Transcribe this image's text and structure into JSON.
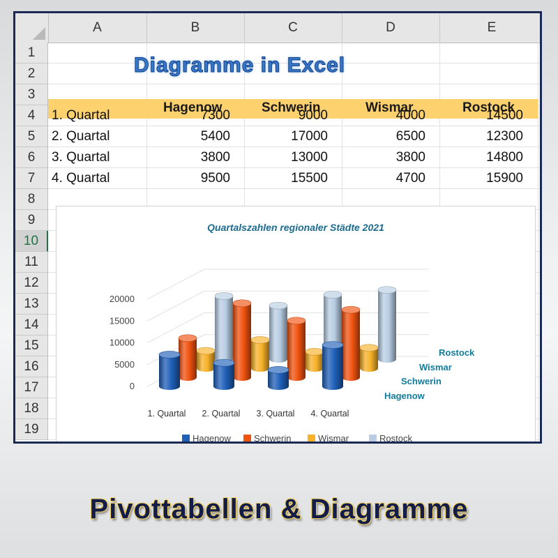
{
  "sheet": {
    "columns": [
      "A",
      "B",
      "C",
      "D",
      "E"
    ],
    "rows": [
      "1",
      "2",
      "3",
      "4",
      "5",
      "6",
      "7",
      "8",
      "9",
      "10",
      "11",
      "12",
      "13",
      "14",
      "15",
      "16",
      "17",
      "18",
      "19"
    ],
    "selected_row": "10",
    "title": "Diagramme in Excel",
    "header": [
      "Hagenow",
      "Schwerin",
      "Wismar",
      "Rostock"
    ],
    "data_rows": [
      {
        "label": "1. Quartal",
        "values": [
          "7300",
          "9000",
          "4000",
          "14500"
        ]
      },
      {
        "label": "2. Quartal",
        "values": [
          "5400",
          "17000",
          "6500",
          "12300"
        ]
      },
      {
        "label": "3. Quartal",
        "values": [
          "3800",
          "13000",
          "3800",
          "14800"
        ]
      },
      {
        "label": "4. Quartal",
        "values": [
          "9500",
          "15500",
          "4700",
          "15900"
        ]
      }
    ],
    "header_fill": "#fdd16e"
  },
  "chart_data": {
    "type": "bar",
    "title": "Quartalszahlen regionaler Städte 2021",
    "categories": [
      "1. Quartal",
      "2. Quartal",
      "3. Quartal",
      "4. Quartal"
    ],
    "series": [
      {
        "name": "Hagenow",
        "values": [
          7300,
          5400,
          3800,
          9500
        ],
        "color": "#1f5fb8"
      },
      {
        "name": "Schwerin",
        "values": [
          9000,
          17000,
          13000,
          15500
        ],
        "color": "#f0520f"
      },
      {
        "name": "Wismar",
        "values": [
          4000,
          6500,
          3800,
          4700
        ],
        "color": "#f7b229"
      },
      {
        "name": "Rostock",
        "values": [
          14500,
          12300,
          14800,
          15900
        ],
        "color": "#b8cde3"
      }
    ],
    "y_ticks": [
      "0",
      "5000",
      "10000",
      "15000",
      "20000"
    ],
    "ylim": [
      0,
      20000
    ],
    "legend_position": "bottom",
    "style": "3d-cylinder"
  },
  "footer": {
    "title": "Pivottabellen & Diagramme"
  }
}
